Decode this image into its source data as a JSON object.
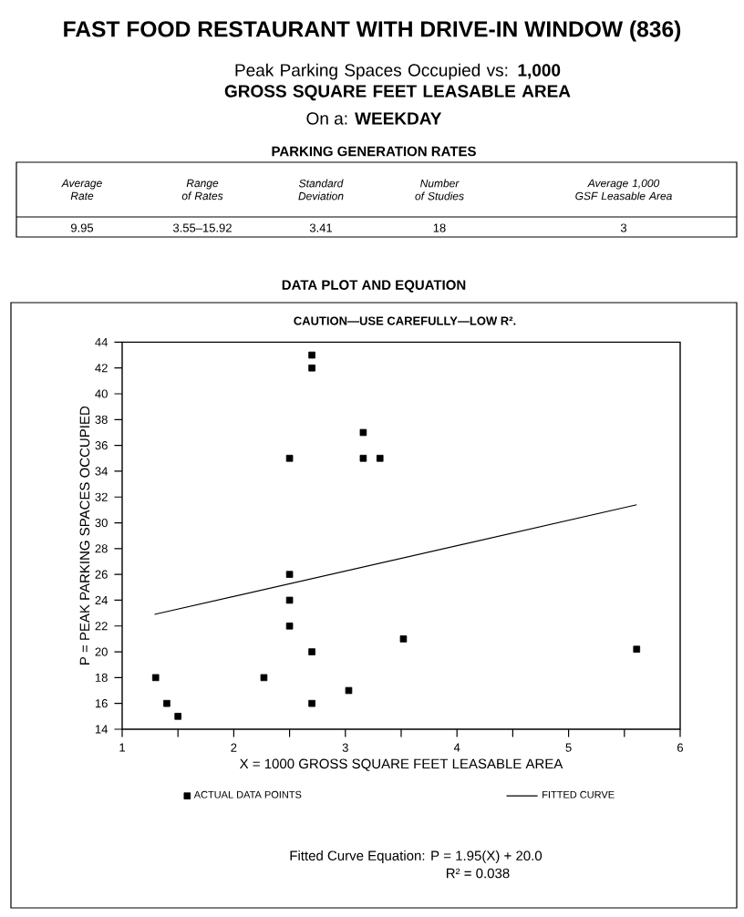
{
  "chart_data": {
    "type": "scatter",
    "title": "FAST FOOD RESTAURANT WITH DRIVE-IN WINDOW (836)",
    "subtitle": "Peak Parking Spaces Occupied vs:  **1,000 GROSS SQUARE FEET LEASABLE AREA**",
    "xlabel": "X = 1000 GROSS SQUARE FEET LEASABLE AREA",
    "ylabel": "P = PEAK PARKING SPACES OCCUPIED",
    "annotations": [
      "On a: **WEEKDAY**",
      "PARKING GENERATION RATES",
      "Average Rate",
      "Range of Rates",
      "Standard Deviation",
      "Number of Studies",
      "Average 1,000 GSF Leasable Area",
      "9.95",
      "3.55–15.92",
      "3.41",
      "18",
      "3",
      "DATA PLOT AND EQUATION",
      "CAUTION—USE CAREFULLY—LOW R².",
      "Fitted Curve Equation: P = 1.95(X) + 20.0",
      "R² = 0.038"
    ],
    "series": [
      {
        "name": "ACTUAL DATA POINTS",
        "color": "#000000",
        "marker": "square",
        "x": [
          1.3,
          1.4,
          1.5,
          2.27,
          2.5,
          2.5,
          2.5,
          2.5,
          2.7,
          2.7,
          2.7,
          2.7,
          3.03,
          3.16,
          3.16,
          3.31,
          3.52,
          5.61
        ],
        "values": [
          18,
          16,
          15,
          18,
          26,
          24,
          22,
          35,
          20,
          16,
          43,
          42,
          17,
          37,
          35,
          35,
          21,
          20.2
        ]
      },
      {
        "name": "FITTED CURVE",
        "color": "#000000",
        "type": "line",
        "marker": "none",
        "x": [
          1.29,
          5.61
        ],
        "values": [
          22.9,
          31.4
        ]
      }
    ],
    "xlim": [
      1,
      6
    ],
    "ylim": [
      14,
      44
    ],
    "xticks": [
      1,
      {
        "value": 1.5,
        "label": null
      },
      2,
      {
        "value": 2.5,
        "label": null
      },
      3,
      {
        "value": 3.5,
        "label": null
      },
      4,
      {
        "value": 4.5,
        "label": null
      },
      5,
      {
        "value": 5.5,
        "label": null
      },
      6
    ],
    "yticks": [
      14,
      16,
      18,
      20,
      22,
      24,
      26,
      28,
      30,
      32,
      34,
      36,
      38,
      40,
      42,
      44
    ],
    "line_style": "solid",
    "legend": "bottom",
    "grid": false
  }
}
